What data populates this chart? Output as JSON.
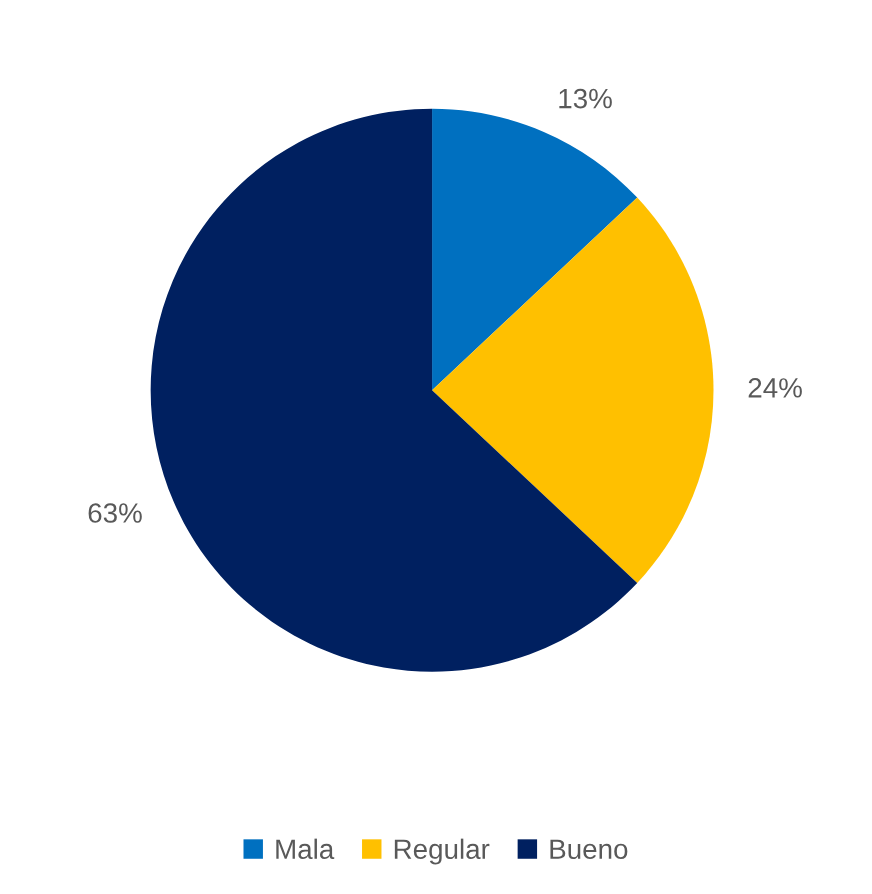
{
  "chart_data": {
    "type": "pie",
    "categories": [
      "Mala",
      "Regular",
      "Bueno"
    ],
    "values": [
      13,
      24,
      63
    ],
    "colors": [
      "#0070c0",
      "#ffc000",
      "#002060"
    ],
    "value_labels": [
      "13%",
      "24%",
      "63%"
    ],
    "legend": "bottom"
  }
}
